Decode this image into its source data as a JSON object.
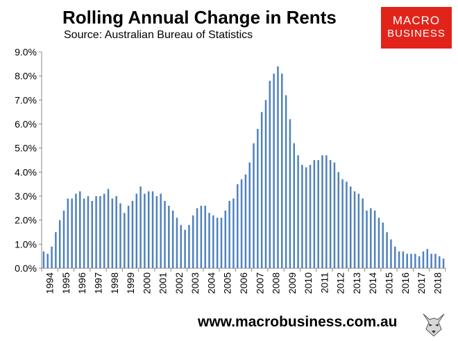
{
  "header": {
    "title": "Rolling Annual Change in Rents",
    "subtitle": "Source: Australian Bureau of Statistics"
  },
  "logo": {
    "line1": "MACRO",
    "line2": "BUSINESS",
    "color": "#e2231a"
  },
  "footer": {
    "url": "www.macrobusiness.com.au"
  },
  "colors": {
    "bar": "#4f81bd",
    "axis": "#888888"
  },
  "chart_data": {
    "type": "bar",
    "title": "Rolling Annual Change in Rents",
    "subtitle": "Source: Australian Bureau of Statistics",
    "frequency": "quarterly",
    "start": "1994 Q1",
    "x_tick_labels": [
      "1994",
      "1995",
      "1996",
      "1997",
      "1998",
      "1999",
      "2000",
      "2001",
      "2002",
      "2003",
      "2004",
      "2005",
      "2006",
      "2007",
      "2008",
      "2009",
      "2010",
      "2011",
      "2012",
      "2013",
      "2014",
      "2015",
      "2016",
      "2017",
      "2018"
    ],
    "ylim": [
      0,
      9
    ],
    "y_tick_labels": [
      "0.0%",
      "1.0%",
      "2.0%",
      "3.0%",
      "4.0%",
      "5.0%",
      "6.0%",
      "7.0%",
      "8.0%",
      "9.0%"
    ],
    "values": [
      0.7,
      0.6,
      0.9,
      1.5,
      2.0,
      2.4,
      2.9,
      2.9,
      3.1,
      3.2,
      2.9,
      3.0,
      2.8,
      3.0,
      3.0,
      3.1,
      3.3,
      2.9,
      3.0,
      2.7,
      2.3,
      2.6,
      2.8,
      3.1,
      3.4,
      3.1,
      3.2,
      3.2,
      3.0,
      3.1,
      2.8,
      2.6,
      2.4,
      2.1,
      1.8,
      1.6,
      1.8,
      2.2,
      2.5,
      2.6,
      2.6,
      2.3,
      2.2,
      2.1,
      2.1,
      2.4,
      2.8,
      2.9,
      3.5,
      3.7,
      3.9,
      4.4,
      5.2,
      5.8,
      6.5,
      7.0,
      7.8,
      8.1,
      8.4,
      8.1,
      7.2,
      6.2,
      5.2,
      4.7,
      4.3,
      4.2,
      4.3,
      4.5,
      4.5,
      4.7,
      4.7,
      4.5,
      4.4,
      4.0,
      3.7,
      3.6,
      3.4,
      3.2,
      3.1,
      2.9,
      2.4,
      2.5,
      2.4,
      2.1,
      1.9,
      1.5,
      1.2,
      0.9,
      0.7,
      0.7,
      0.6,
      0.6,
      0.6,
      0.5,
      0.7,
      0.8,
      0.6,
      0.6,
      0.5,
      0.4
    ],
    "grid": false,
    "legend": "none"
  }
}
